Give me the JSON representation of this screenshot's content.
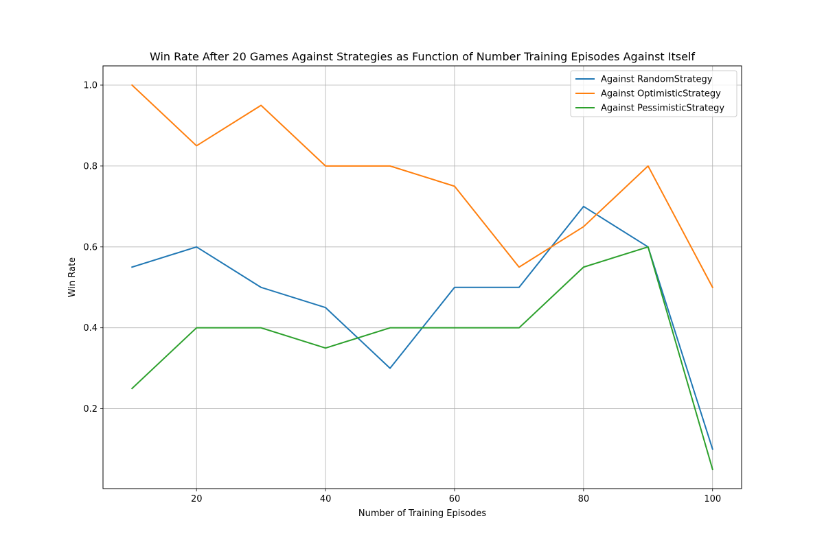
{
  "chart_data": {
    "type": "line",
    "title": "Win Rate After 20 Games Against Strategies as Function of Number Training Episodes Against Itself",
    "xlabel": "Number of Training Episodes",
    "ylabel": "Win Rate",
    "x": [
      10,
      20,
      30,
      40,
      50,
      60,
      70,
      80,
      90,
      100
    ],
    "xlim": [
      5.5,
      104.5
    ],
    "ylim": [
      0.0025,
      1.0475
    ],
    "xticks": [
      20,
      40,
      60,
      80,
      100
    ],
    "xtick_labels": [
      "20",
      "40",
      "60",
      "80",
      "100"
    ],
    "yticks": [
      0.2,
      0.4,
      0.6,
      0.8,
      1.0
    ],
    "ytick_labels": [
      "0.2",
      "0.4",
      "0.6",
      "0.8",
      "1.0"
    ],
    "grid": true,
    "legend_position": "top-right",
    "series": [
      {
        "name": "Against RandomStrategy",
        "color": "#1f77b4",
        "values": [
          0.55,
          0.6,
          0.5,
          0.45,
          0.3,
          0.5,
          0.5,
          0.7,
          0.6,
          0.1
        ]
      },
      {
        "name": "Against OptimisticStrategy",
        "color": "#ff7f0e",
        "values": [
          1.0,
          0.85,
          0.95,
          0.8,
          0.8,
          0.75,
          0.55,
          0.65,
          0.8,
          0.5
        ]
      },
      {
        "name": "Against PessimisticStrategy",
        "color": "#2ca02c",
        "values": [
          0.25,
          0.4,
          0.4,
          0.35,
          0.4,
          0.4,
          0.4,
          0.55,
          0.6,
          0.05
        ]
      }
    ]
  }
}
